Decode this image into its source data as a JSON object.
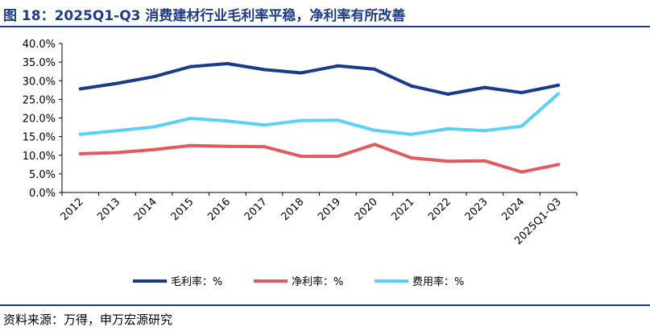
{
  "title": "图 18：2025Q1-Q3 消费建材行业毛利率平稳，净利率有所改善",
  "source": "资料来源：万得，申万宏源研究",
  "chart_data": {
    "type": "line",
    "categories": [
      "2012",
      "2013",
      "2014",
      "2015",
      "2016",
      "2017",
      "2018",
      "2019",
      "2020",
      "2021",
      "2022",
      "2023",
      "2024",
      "2025Q1-Q3"
    ],
    "ylim": [
      0,
      40
    ],
    "ytick_step": 5,
    "ytick_format": "percent_1dp",
    "grid": false,
    "legend_position": "bottom",
    "series": [
      {
        "name": "毛利率：%",
        "color": "#1a3a8c",
        "values": [
          27.8,
          29.3,
          31.1,
          33.8,
          34.6,
          33.0,
          32.1,
          34.0,
          33.1,
          28.6,
          26.4,
          28.2,
          26.8,
          28.8
        ]
      },
      {
        "name": "净利率：%",
        "color": "#e05a5e",
        "values": [
          10.4,
          10.7,
          11.5,
          12.6,
          12.4,
          12.3,
          9.7,
          9.7,
          12.9,
          9.3,
          8.4,
          8.5,
          5.5,
          7.5
        ]
      },
      {
        "name": "费用率：%",
        "color": "#5ad1f5",
        "values": [
          15.6,
          16.6,
          17.6,
          19.9,
          19.2,
          18.1,
          19.3,
          19.4,
          16.7,
          15.6,
          17.1,
          16.6,
          17.8,
          26.5
        ]
      }
    ]
  }
}
